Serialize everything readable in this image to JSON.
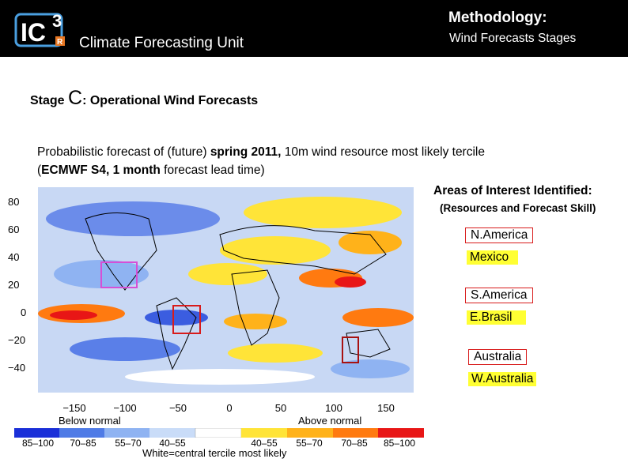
{
  "header": {
    "logo": {
      "text": "IC",
      "superscript": "3",
      "badge": "R"
    },
    "unit_name": "Climate Forecasting Unit",
    "title": "Methodology:",
    "subtitle": "Wind Forecasts Stages"
  },
  "stage": {
    "prefix": "Stage ",
    "letter": "C",
    "suffix": ": Operational Wind Forecasts"
  },
  "description": {
    "line1_a": "Probabilistic forecast of (future) ",
    "line1_b": "spring 2011,",
    "line1_c": " 10m wind resource most likely tercile",
    "line2_a": "(",
    "line2_b": "ECMWF S4, 1 month",
    "line2_c": " forecast lead time)"
  },
  "map": {
    "y_ticks": [
      "80",
      "60",
      "40",
      "20",
      "0",
      "−20",
      "−40"
    ],
    "x_ticks": [
      "−150",
      "−100",
      "−50",
      "0",
      "50",
      "100",
      "150"
    ],
    "below_label": "Below normal",
    "above_label": "Above normal",
    "colorbar_labels": [
      "85–100",
      "70–85",
      "55–70",
      "40–55",
      "40–55",
      "55–70",
      "70–85",
      "85–100"
    ],
    "colorbar_colors": [
      "#1a2fd8",
      "#4f7be6",
      "#8fb3f2",
      "#c9dcf8",
      "#ffffff",
      "#ffe438",
      "#ffb21a",
      "#ff7a10",
      "#e81616"
    ],
    "white_note": "White=central tercile most likely",
    "highlight_colors": {
      "north_america": "#d64fd6",
      "south_america": "#d81b1b",
      "australia": "#a81111"
    }
  },
  "areas": {
    "title": "Areas of Interest Identified:",
    "subtitle": "(Resources and Forecast Skill)",
    "regions": [
      {
        "name": "N.America",
        "sub": "Mexico"
      },
      {
        "name": "S.America",
        "sub": "E.Brasil"
      },
      {
        "name": "Australia",
        "sub": "W.Australia"
      }
    ]
  }
}
